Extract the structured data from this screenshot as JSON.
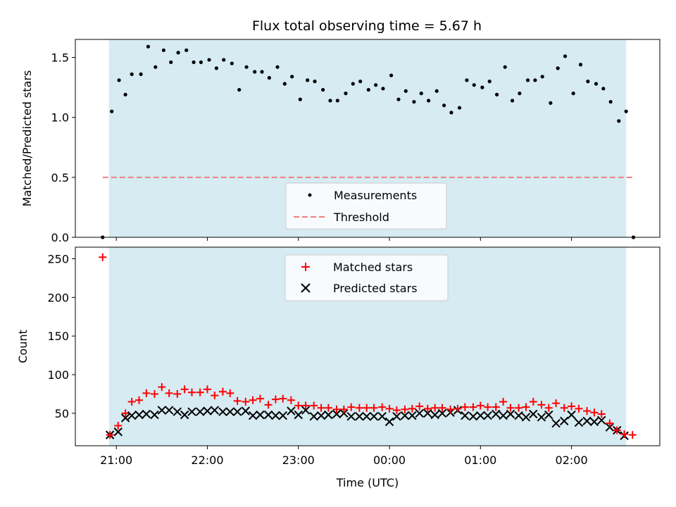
{
  "chart_data": [
    {
      "type": "scatter",
      "title": "Flux total observing time = 5.67 h",
      "xlabel": "",
      "ylabel": "Matched/Predicted stars",
      "ylim": [
        0,
        1.65
      ],
      "yticks": [
        "0.0",
        "0.5",
        "1.0",
        "1.5"
      ],
      "ytick_values": [
        0,
        0.5,
        1.0,
        1.5
      ],
      "legend": [
        "Measurements",
        "Threshold"
      ],
      "legend_position": "lower-center",
      "colors": {
        "points": "#000000",
        "threshold": "#f08080",
        "shade": "#add8e6"
      },
      "threshold": 0.5,
      "x_hours": [
        20.85,
        20.95,
        21.03,
        21.1,
        21.17,
        21.27,
        21.35,
        21.43,
        21.52,
        21.6,
        21.68,
        21.77,
        21.85,
        21.93,
        22.02,
        22.1,
        22.18,
        22.27,
        22.35,
        22.43,
        22.52,
        22.6,
        22.68,
        22.77,
        22.85,
        22.93,
        23.02,
        23.1,
        23.18,
        23.27,
        23.35,
        23.43,
        23.52,
        23.6,
        23.68,
        23.77,
        23.85,
        23.93,
        24.02,
        24.1,
        24.18,
        24.27,
        24.35,
        24.43,
        24.52,
        24.6,
        24.68,
        24.77,
        24.85,
        24.93,
        25.02,
        25.1,
        25.18,
        25.27,
        25.35,
        25.43,
        25.52,
        25.6,
        25.68,
        25.77,
        25.85,
        25.93,
        26.02,
        26.1,
        26.18,
        26.27,
        26.35,
        26.43,
        26.52,
        26.6,
        26.68
      ],
      "y": [
        0.0,
        1.05,
        1.31,
        1.19,
        1.36,
        1.36,
        1.59,
        1.42,
        1.56,
        1.46,
        1.54,
        1.56,
        1.46,
        1.46,
        1.48,
        1.41,
        1.48,
        1.45,
        1.23,
        1.42,
        1.38,
        1.38,
        1.33,
        1.42,
        1.28,
        1.34,
        1.15,
        1.31,
        1.3,
        1.23,
        1.14,
        1.14,
        1.2,
        1.28,
        1.3,
        1.23,
        1.27,
        1.24,
        1.35,
        1.15,
        1.22,
        1.13,
        1.2,
        1.14,
        1.22,
        1.1,
        1.04,
        1.08,
        1.31,
        1.27,
        1.25,
        1.3,
        1.19,
        1.42,
        1.14,
        1.2,
        1.31,
        1.31,
        1.34,
        1.12,
        1.41,
        1.51,
        1.2,
        1.44,
        1.3,
        1.28,
        1.24,
        1.13,
        0.97,
        1.05,
        0.0
      ]
    },
    {
      "type": "scatter",
      "title": "",
      "xlabel": "Time (UTC)",
      "ylabel": "Count",
      "ylim": [
        8,
        265
      ],
      "yticks": [
        "50",
        "100",
        "150",
        "200",
        "250"
      ],
      "ytick_values": [
        50,
        100,
        150,
        200,
        250
      ],
      "xticks": [
        "21:00",
        "22:00",
        "23:00",
        "00:00",
        "01:00",
        "02:00"
      ],
      "xtick_hours": [
        21,
        22,
        23,
        24,
        25,
        26
      ],
      "xlim_hours": [
        20.55,
        26.97
      ],
      "shade_hours": [
        20.92,
        26.6
      ],
      "legend": [
        "Matched stars",
        "Predicted stars"
      ],
      "legend_position": "top-center",
      "colors": {
        "matched": "#ff0000",
        "predicted": "#000000",
        "shade": "#add8e6"
      },
      "x_hours": [
        20.85,
        20.93,
        21.02,
        21.1,
        21.17,
        21.25,
        21.33,
        21.42,
        21.5,
        21.58,
        21.67,
        21.75,
        21.83,
        21.92,
        22.0,
        22.08,
        22.17,
        22.25,
        22.33,
        22.42,
        22.5,
        22.58,
        22.67,
        22.75,
        22.83,
        22.92,
        23.0,
        23.08,
        23.17,
        23.25,
        23.33,
        23.42,
        23.5,
        23.58,
        23.67,
        23.75,
        23.83,
        23.92,
        24.0,
        24.08,
        24.17,
        24.25,
        24.33,
        24.42,
        24.5,
        24.58,
        24.67,
        24.75,
        24.83,
        24.92,
        25.0,
        25.08,
        25.17,
        25.25,
        25.33,
        25.42,
        25.5,
        25.58,
        25.67,
        25.75,
        25.83,
        25.92,
        26.0,
        26.08,
        26.17,
        26.25,
        26.33,
        26.42,
        26.5,
        26.58,
        26.67
      ],
      "series": [
        {
          "name": "Matched stars",
          "values": [
            252,
            22,
            34,
            50,
            65,
            67,
            76,
            75,
            84,
            76,
            75,
            81,
            77,
            77,
            81,
            73,
            78,
            76,
            66,
            65,
            67,
            69,
            61,
            68,
            69,
            67,
            60,
            60,
            60,
            57,
            57,
            55,
            55,
            58,
            57,
            57,
            57,
            58,
            56,
            54,
            55,
            56,
            59,
            56,
            57,
            57,
            55,
            56,
            58,
            58,
            60,
            58,
            58,
            65,
            57,
            57,
            58,
            65,
            61,
            57,
            63,
            57,
            59,
            56,
            53,
            51,
            49,
            37,
            28,
            23,
            22
          ]
        },
        {
          "name": "Predicted stars",
          "values": [
            null,
            22,
            26,
            44,
            47,
            48,
            49,
            48,
            54,
            54,
            52,
            48,
            52,
            52,
            53,
            54,
            52,
            52,
            52,
            53,
            47,
            48,
            48,
            47,
            47,
            53,
            48,
            54,
            46,
            47,
            48,
            49,
            50,
            46,
            46,
            46,
            46,
            46,
            39,
            46,
            47,
            47,
            50,
            50,
            48,
            50,
            51,
            54,
            47,
            46,
            47,
            47,
            49,
            47,
            49,
            47,
            45,
            49,
            45,
            48,
            37,
            40,
            48,
            38,
            40,
            39,
            41,
            32,
            28,
            21,
            null
          ]
        }
      ]
    }
  ]
}
